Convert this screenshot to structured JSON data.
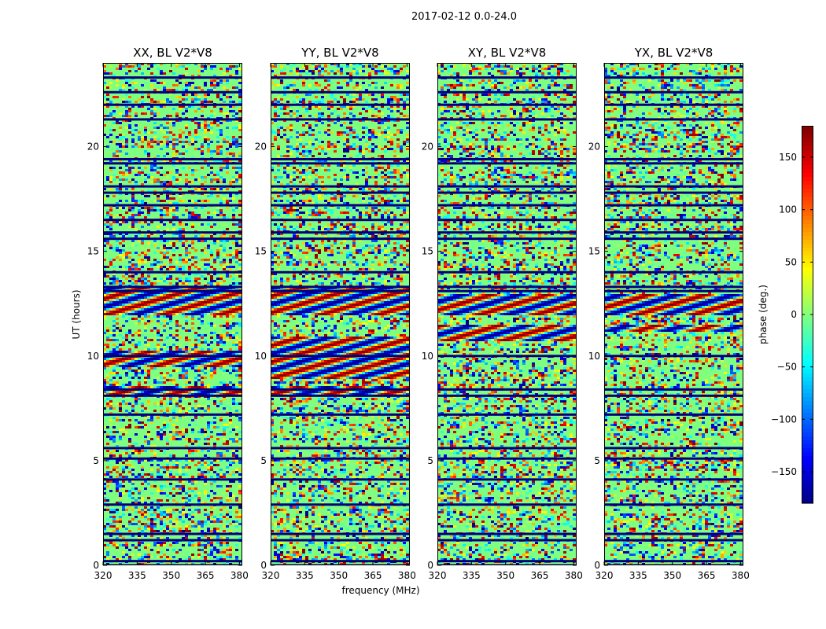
{
  "figure": {
    "title": "2017-02-12 0.0-24.0"
  },
  "chart_data": {
    "type": "heatmap",
    "title": "2017-02-12 0.0-24.0",
    "xlabel": "frequency (MHz)",
    "ylabel": "UT (hours)",
    "xlim": [
      320,
      381.25
    ],
    "ylim": [
      0,
      24
    ],
    "x_ticks": [
      320,
      335,
      350,
      365,
      380
    ],
    "y_ticks": [
      0,
      5,
      10,
      15,
      20
    ],
    "panels": [
      {
        "name": "XX, BL V2*V8",
        "structured_hours": [
          [
            12.0,
            13.3
          ],
          [
            8.2,
            8.6
          ],
          [
            9.5,
            10.3
          ]
        ]
      },
      {
        "name": "YY, BL V2*V8",
        "structured_hours": [
          [
            12.0,
            13.3
          ],
          [
            9.0,
            11.0
          ],
          [
            8.2,
            8.6
          ]
        ]
      },
      {
        "name": "XY, BL V2*V8",
        "structured_hours": [
          [
            12.0,
            13.0
          ],
          [
            10.8,
            11.5
          ]
        ]
      },
      {
        "name": "YX, BL V2*V8",
        "structured_hours": [
          [
            12.0,
            13.0
          ],
          [
            11.2,
            11.6
          ]
        ]
      }
    ],
    "flagged_hours": [
      0.0,
      0.2,
      1.2,
      1.5,
      2.9,
      4.1,
      5.1,
      5.6,
      7.2,
      8.1,
      8.4,
      10.0,
      13.1,
      13.3,
      14.0,
      15.6,
      15.9,
      16.5,
      17.2,
      17.8,
      18.1,
      19.2,
      19.4,
      21.3,
      22.0,
      22.6,
      23.3
    ],
    "colorbar": {
      "label": "phase (deg.)",
      "range": [
        -180,
        180
      ],
      "ticks": [
        150,
        100,
        50,
        0,
        -50,
        -100,
        -150
      ],
      "colormap": [
        "#00007f",
        "#0000ff",
        "#007fff",
        "#00ffff",
        "#7fff7f",
        "#ffff00",
        "#ff7f00",
        "#ff0000",
        "#7f0000"
      ]
    }
  }
}
